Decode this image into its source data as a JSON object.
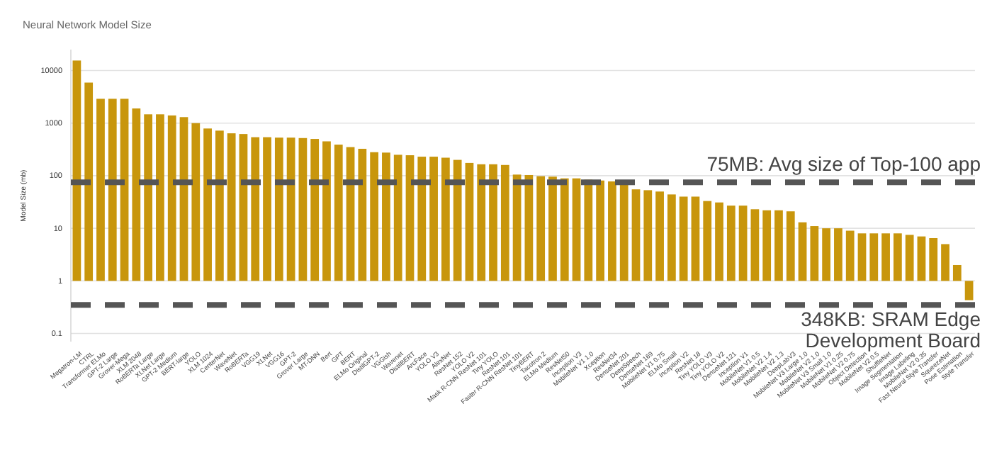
{
  "chart_data": {
    "type": "bar",
    "title": "Neural Network Model Size",
    "ylabel": "Model Size (mb)",
    "categories": [
      "Megatron-LM",
      "CTRL",
      "Transformer ELMo",
      "GPT-2 Large",
      "Grover-Mega",
      "XLM 2048",
      "RoBERTa Large",
      "XLNet Large",
      "GPT-2 Medium",
      "BERT-large",
      "YOLO",
      "XLM 1024",
      "CenterNet",
      "WaveNet",
      "RoBERTa",
      "VGG19",
      "XLNet",
      "VGG16",
      "GPT-2",
      "Grover Large",
      "MT-DNN",
      "Bert",
      "GPT",
      "BERT",
      "ELMo Original",
      "DistilGPT-2",
      "VGGish",
      "Wavenet",
      "DistilBERT",
      "ArcFace",
      "YOLO V3",
      "AlexNet",
      "ResNet 152",
      "YOLO V2",
      "Mask R-CNN ResNet 101",
      "Tiny YOLO",
      "ResNet 101",
      "Faster R-CNN ResNet 101",
      "TinyBERT",
      "Tacotron 2",
      "ELMo Medium",
      "ResNet50",
      "Inception V3",
      "MobileNet V1 1.0",
      "Xception",
      "ResNet34",
      "DenseNet 201",
      "DeepSpeech",
      "DenseNet 169",
      "MobileNet V1 0.75",
      "ELMo Small",
      "Inception V2",
      "ResNet 18",
      "Tiny YOLO V3",
      "Tiny YOLO V2",
      "DenseNet 121",
      "Inception V1",
      "MobileNet V1 0.5",
      "MobileNet V2 1.4",
      "MobileNet V2 1.3",
      "DeepLabV3",
      "MobileNet V3 Large 1.0",
      "MobileNet V2 1.0",
      "MobileNet V3 Small 1.0",
      "MobileNet V1 0.25",
      "MobileNet V2 0.75",
      "Object Detection",
      "MobileNet V2 0.5",
      "ShuffleNet",
      "Image Segmentation",
      "Image Labeling",
      "MobileNet V2 0.35",
      "Fast Neural Style Transfer",
      "SqueezeNet",
      "Pose Estimation",
      "Style Transfer"
    ],
    "base": [
      1,
      1,
      1,
      1,
      1,
      1,
      1,
      1,
      1,
      1,
      1,
      1,
      1,
      1,
      1,
      1,
      1,
      1,
      1,
      1,
      1,
      1,
      1,
      1,
      1,
      1,
      1,
      1,
      1,
      1,
      1,
      1,
      1,
      1,
      1,
      1,
      1,
      1,
      1,
      1,
      1,
      1,
      1,
      1,
      1,
      1,
      1,
      1,
      1,
      1,
      1,
      1,
      1,
      1,
      1,
      1,
      1,
      1,
      1,
      1,
      1,
      1,
      1,
      1,
      1,
      1,
      1,
      1,
      1,
      1,
      1,
      1,
      1,
      1,
      1,
      1
    ],
    "values": [
      15499,
      5899,
      2899,
      2899,
      2899,
      1899,
      1469,
      1469,
      1399,
      1299,
      999,
      789,
      719,
      639,
      619,
      539,
      539,
      529,
      529,
      519,
      499,
      449,
      389,
      349,
      324,
      279,
      274,
      249,
      244,
      229,
      229,
      219,
      199,
      174,
      164,
      164,
      159,
      104,
      102,
      97,
      95,
      88,
      88,
      83,
      80,
      77,
      67,
      54,
      52,
      49,
      43,
      39,
      39,
      32,
      30,
      26,
      26,
      22,
      21,
      21,
      20,
      12,
      10,
      9,
      9,
      8,
      7,
      7,
      7,
      7,
      6.5,
      6,
      5.5,
      4,
      1,
      -0.57
    ],
    "color": "#c8960c",
    "log": true,
    "ylim": [
      0.07,
      25000
    ],
    "yticks": [
      0.1,
      1,
      10,
      100,
      1000,
      10000
    ],
    "grid": "y",
    "ref_lines": [
      {
        "axis": "y",
        "value": 75,
        "label": "75MB: Avg size of Top-100 app",
        "color": "#555555",
        "line_style": "dashed"
      },
      {
        "axis": "y",
        "value": 0.348,
        "label": "348KB: SRAM Edge Development Board",
        "color": "#555555",
        "line_style": "dashed"
      }
    ]
  }
}
